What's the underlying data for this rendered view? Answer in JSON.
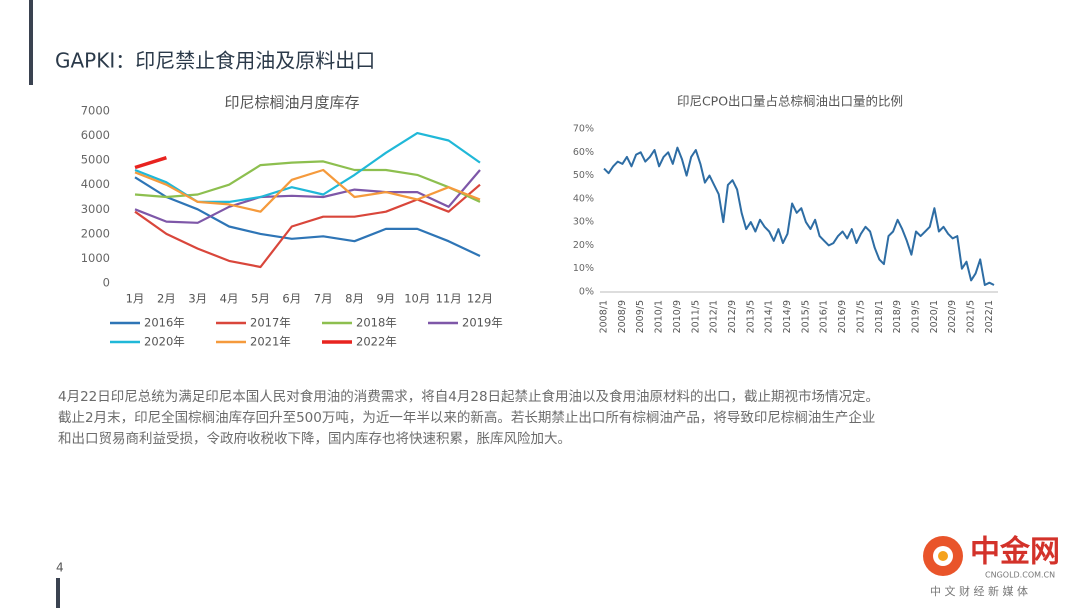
{
  "header": {
    "title": "GAPKI：印尼禁止食用油及原料出口"
  },
  "chart_data": [
    {
      "type": "line",
      "title": "印尼棕榈油月度库存",
      "categories": [
        "1月",
        "2月",
        "3月",
        "4月",
        "5月",
        "6月",
        "7月",
        "8月",
        "9月",
        "10月",
        "11月",
        "12月"
      ],
      "ylim": [
        0,
        7000
      ],
      "yticks": [
        0,
        1000,
        2000,
        3000,
        4000,
        5000,
        6000,
        7000
      ],
      "grid": false,
      "series": [
        {
          "name": "2016年",
          "color": "#2e75b6",
          "values": [
            4300,
            3500,
            3000,
            2300,
            2000,
            1800,
            1900,
            1700,
            2200,
            2200,
            1700,
            1100
          ]
        },
        {
          "name": "2017年",
          "color": "#d9463b",
          "values": [
            2900,
            2000,
            1400,
            900,
            650,
            2300,
            2700,
            2700,
            2900,
            3400,
            2900,
            4000
          ]
        },
        {
          "name": "2018年",
          "color": "#8dbf4f",
          "values": [
            3600,
            3500,
            3600,
            4000,
            4800,
            4900,
            4950,
            4600,
            4600,
            4400,
            3900,
            3300
          ]
        },
        {
          "name": "2019年",
          "color": "#7e57a8",
          "values": [
            3000,
            2500,
            2450,
            3100,
            3500,
            3550,
            3500,
            3800,
            3700,
            3700,
            3100,
            4600
          ]
        },
        {
          "name": "2020年",
          "color": "#20b8d8",
          "values": [
            4600,
            4100,
            3300,
            3300,
            3500,
            3900,
            3600,
            4400,
            5300,
            6100,
            5800,
            4900
          ]
        },
        {
          "name": "2021年",
          "color": "#f59a3c",
          "values": [
            4500,
            4000,
            3300,
            3200,
            2900,
            4200,
            4600,
            3500,
            3700,
            3400,
            3900,
            3400
          ]
        },
        {
          "name": "2022年",
          "color": "#e8231f",
          "values": [
            4700,
            5100,
            null,
            null,
            null,
            null,
            null,
            null,
            null,
            null,
            null,
            null
          ]
        }
      ]
    },
    {
      "type": "line",
      "title": "印尼CPO出口量占总棕榈油出口量的比例",
      "categories": [
        "2008/1",
        null,
        null,
        null,
        "2008/9",
        null,
        null,
        null,
        "2009/5",
        null,
        null,
        null,
        "2010/1",
        null,
        null,
        null,
        "2010/9",
        null,
        null,
        null,
        "2011/5",
        null,
        null,
        null,
        "2012/1",
        null,
        null,
        null,
        "2012/9",
        null,
        null,
        null,
        "2013/5",
        null,
        null,
        null,
        "2014/1",
        null,
        null,
        null,
        "2014/9",
        null,
        null,
        null,
        "2015/5",
        null,
        null,
        null,
        "2016/1",
        null,
        null,
        null,
        "2016/9",
        null,
        null,
        null,
        "2017/5",
        null,
        null,
        null,
        "2018/1",
        null,
        null,
        null,
        "2018/9",
        null,
        null,
        null,
        "2019/5",
        null,
        null,
        null,
        "2020/1",
        null,
        null,
        null,
        "2020/9",
        null,
        null,
        null,
        "2021/5",
        null,
        null,
        null,
        "2022/1",
        null
      ],
      "ylim": [
        0,
        70
      ],
      "yticks": [
        {
          "value": 0,
          "label": "0%"
        },
        {
          "value": 10,
          "label": "10%"
        },
        {
          "value": 20,
          "label": "20%"
        },
        {
          "value": 30,
          "label": "30%"
        },
        {
          "value": 40,
          "label": "40%"
        },
        {
          "value": 50,
          "label": "50%"
        },
        {
          "value": 60,
          "label": "60%"
        },
        {
          "value": 70,
          "label": "70%"
        }
      ],
      "grid": false,
      "series": [
        {
          "name": null,
          "color": "#2e6da4",
          "values": [
            53,
            51,
            54,
            56,
            55,
            58,
            54,
            59,
            60,
            56,
            58,
            61,
            54,
            58,
            60,
            55,
            62,
            57,
            50,
            58,
            61,
            55,
            47,
            50,
            46,
            42,
            30,
            46,
            48,
            44,
            34,
            27,
            30,
            26,
            31,
            28,
            26,
            22,
            27,
            21,
            25,
            38,
            34,
            36,
            30,
            27,
            31,
            24,
            22,
            20,
            21,
            24,
            26,
            23,
            27,
            21,
            25,
            28,
            26,
            19,
            14,
            12,
            24,
            26,
            31,
            27,
            22,
            16,
            26,
            24,
            26,
            28,
            36,
            26,
            28,
            25,
            23,
            24,
            10,
            13,
            5,
            8,
            14,
            3,
            4,
            3
          ]
        }
      ]
    }
  ],
  "paragraph": [
    "4月22日印尼总统为满足印尼本国人民对食用油的消费需求，将自4月28日起禁止食用油以及食用油原材料的出口，截止期视市场情况定。",
    "截止2月末，印尼全国棕榈油库存回升至500万吨，为近一年半以来的新高。若长期禁止出口所有棕榈油产品，将导致印尼棕榈油生产企业",
    "和出口贸易商利益受损，令政府收税收下降，国内库存也将快速积累，胀库风险加大。"
  ],
  "page_number": "4",
  "logo": {
    "name": "中金网",
    "url": "CNGOLD.COM.CN",
    "slogan": "中 文 财 经 新 媒 体"
  }
}
